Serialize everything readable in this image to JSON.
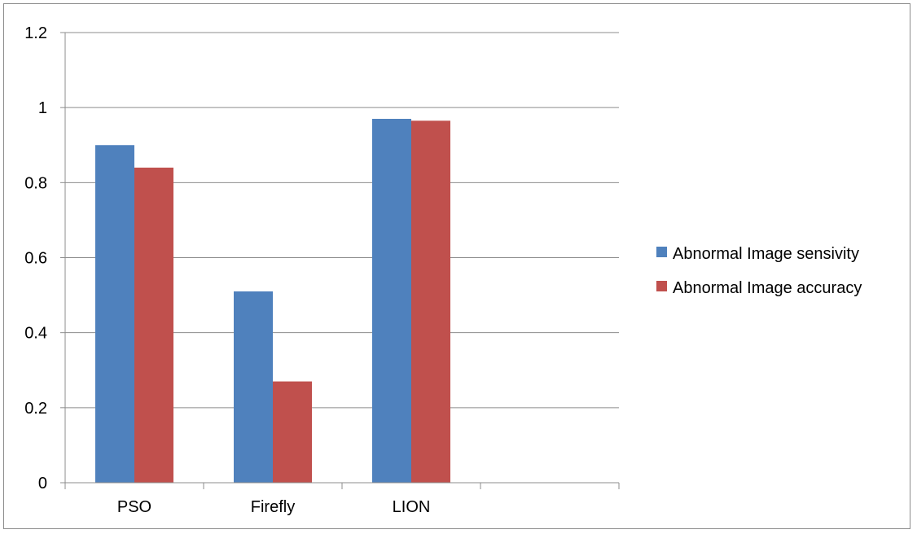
{
  "chart_data": {
    "type": "bar",
    "categories": [
      "PSO",
      "Firefly",
      "LION",
      ""
    ],
    "series": [
      {
        "name": "Abnormal Image sensivity",
        "values": [
          0.9,
          0.51,
          0.97,
          null
        ],
        "color": "#4F81BD"
      },
      {
        "name": "Abnormal Image accuracy",
        "values": [
          0.84,
          0.27,
          0.965,
          null
        ],
        "color": "#C0504D"
      }
    ],
    "y_ticks": [
      "0",
      "0.2",
      "0.4",
      "0.6",
      "0.8",
      "1",
      "1.2"
    ],
    "ylim": [
      0,
      1.2
    ],
    "grid": true,
    "legend_position": "right"
  }
}
